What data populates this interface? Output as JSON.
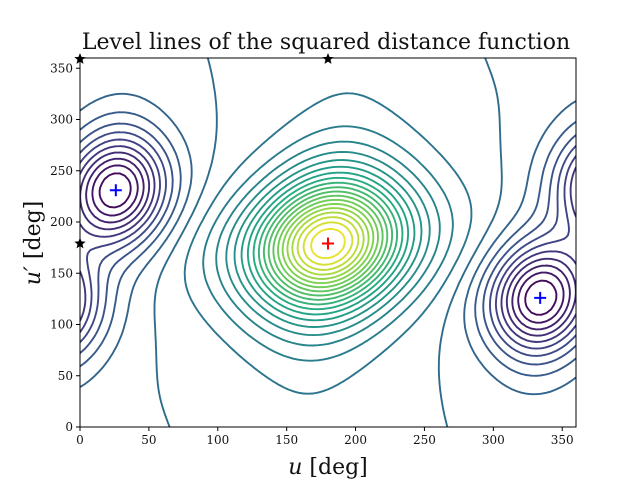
{
  "chart_data": {
    "type": "contour",
    "title": "Level lines of the squared distance function",
    "xlabel_main": "u",
    "xlabel_unit": " [deg]",
    "ylabel_main": "u′",
    "ylabel_unit": " [deg]",
    "xlim": [
      0,
      360
    ],
    "ylim": [
      0,
      360
    ],
    "xticks": [
      0,
      50,
      100,
      150,
      200,
      250,
      300,
      350
    ],
    "yticks": [
      0,
      50,
      100,
      150,
      200,
      250,
      300,
      350
    ],
    "grid": false,
    "colormap": "viridis",
    "colormap_stops": [
      "#440154",
      "#414487",
      "#2a788e",
      "#22a884",
      "#7ad151",
      "#fde725"
    ],
    "markers": [
      {
        "kind": "plus",
        "color": "#0000ff",
        "x": 26,
        "y": 231
      },
      {
        "kind": "plus",
        "color": "#0000ff",
        "x": 334,
        "y": 126
      },
      {
        "kind": "plus",
        "color": "#ff0000",
        "x": 180,
        "y": 179
      },
      {
        "kind": "star",
        "color": "#000000",
        "x": 180,
        "y": 359
      },
      {
        "kind": "star",
        "color": "#000000",
        "x": 0,
        "y": 359
      },
      {
        "kind": "star",
        "color": "#000000",
        "x": 0,
        "y": 179
      }
    ]
  }
}
